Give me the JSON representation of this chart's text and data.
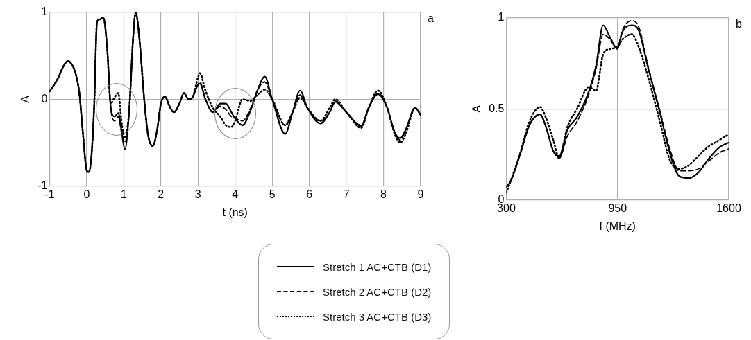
{
  "chart_data": [
    {
      "type": "line",
      "xlabel": "t (ns)",
      "ylabel": "A",
      "annotations": [
        "a"
      ],
      "xlim": [
        -1,
        9
      ],
      "xticks": [
        -1,
        0,
        1,
        2,
        3,
        4,
        5,
        6,
        7,
        8,
        9
      ],
      "ylim": [
        -1,
        1
      ],
      "yticks": [
        -1,
        0,
        1
      ],
      "grid": true,
      "legend": "bottom",
      "marker": "none",
      "x": [
        -1,
        -0.8,
        -0.6,
        -0.5,
        -0.4,
        -0.3,
        -0.2,
        -0.1,
        0,
        0.05,
        0.12,
        0.2,
        0.28,
        0.35,
        0.45,
        0.55,
        0.65,
        0.75,
        0.85,
        0.95,
        1.03,
        1.15,
        1.25,
        1.32,
        1.42,
        1.55,
        1.65,
        1.78,
        1.9,
        2.0,
        2.12,
        2.2,
        2.35,
        2.5,
        2.62,
        2.75,
        2.85,
        3.0,
        3.05,
        3.2,
        3.4,
        3.6,
        3.75,
        3.9,
        4.0,
        4.2,
        4.4,
        4.6,
        4.8,
        5.0,
        5.35,
        5.55,
        5.75,
        5.95,
        6.3,
        6.55,
        6.7,
        7.0,
        7.4,
        7.6,
        7.85,
        8.1,
        8.3,
        8.45,
        8.6,
        8.85,
        9.0
      ],
      "series": [
        {
          "name": "Stretch 1 AC+CTB (D1)",
          "color": "#000000",
          "line_style": "solid",
          "values": [
            0.09,
            0.22,
            0.4,
            0.44,
            0.4,
            0.3,
            0.08,
            -0.4,
            -0.82,
            -0.84,
            -0.7,
            -0.1,
            0.9,
            0.92,
            0.94,
            0.6,
            -0.1,
            -0.2,
            -0.16,
            -0.4,
            -0.58,
            -0.1,
            0.7,
            1.0,
            0.7,
            0.0,
            -0.4,
            -0.54,
            -0.35,
            -0.05,
            0.03,
            -0.05,
            -0.15,
            -0.05,
            0.07,
            0.0,
            0.02,
            0.17,
            0.18,
            0.0,
            -0.15,
            -0.05,
            -0.05,
            -0.15,
            -0.22,
            -0.3,
            -0.15,
            0.1,
            0.26,
            0.0,
            -0.4,
            -0.15,
            0.1,
            -0.1,
            -0.28,
            -0.15,
            -0.03,
            -0.15,
            -0.31,
            -0.1,
            0.06,
            -0.1,
            -0.38,
            -0.45,
            -0.35,
            -0.1,
            -0.18
          ]
        },
        {
          "name": "Stretch 2 AC+CTB (D2)",
          "color": "#000000",
          "line_style": "dashed",
          "values": [
            0.09,
            0.22,
            0.4,
            0.44,
            0.4,
            0.3,
            0.08,
            -0.4,
            -0.82,
            -0.84,
            -0.7,
            -0.1,
            0.9,
            0.92,
            0.94,
            0.6,
            -0.1,
            -0.25,
            -0.2,
            -0.4,
            -0.5,
            -0.1,
            0.7,
            1.0,
            0.7,
            0.0,
            -0.4,
            -0.54,
            -0.35,
            -0.05,
            0.03,
            -0.05,
            -0.15,
            -0.05,
            0.07,
            0.0,
            0.02,
            0.17,
            0.2,
            0.0,
            -0.15,
            -0.08,
            -0.12,
            -0.2,
            -0.22,
            -0.25,
            -0.12,
            0.1,
            0.2,
            0.0,
            -0.3,
            -0.15,
            0.05,
            -0.1,
            -0.25,
            -0.15,
            -0.02,
            -0.15,
            -0.3,
            -0.1,
            0.07,
            -0.1,
            -0.38,
            -0.47,
            -0.35,
            -0.1,
            -0.18
          ]
        },
        {
          "name": "Stretch 3 AC+CTB (D3)",
          "color": "#000000",
          "line_style": "dotted",
          "values": [
            0.09,
            0.22,
            0.4,
            0.44,
            0.4,
            0.3,
            0.08,
            -0.4,
            -0.82,
            -0.84,
            -0.7,
            -0.1,
            0.9,
            0.92,
            0.94,
            0.6,
            -0.05,
            0.02,
            0.07,
            -0.3,
            -0.45,
            -0.1,
            0.7,
            1.0,
            0.7,
            0.0,
            -0.4,
            -0.54,
            -0.35,
            -0.05,
            0.03,
            -0.05,
            -0.15,
            -0.05,
            0.07,
            0.0,
            0.02,
            0.25,
            0.3,
            0.1,
            -0.1,
            -0.2,
            -0.3,
            -0.32,
            -0.25,
            0.0,
            -0.02,
            0.05,
            0.11,
            0.0,
            -0.3,
            -0.15,
            0.02,
            -0.1,
            -0.25,
            -0.1,
            0.0,
            -0.15,
            -0.33,
            -0.1,
            0.1,
            -0.1,
            -0.4,
            -0.5,
            -0.4,
            -0.1,
            -0.18
          ]
        }
      ]
    },
    {
      "type": "line",
      "xlabel": "f (MHz)",
      "ylabel": "A",
      "annotations": [
        "b"
      ],
      "xlim": [
        300,
        1600
      ],
      "xticks": [
        300,
        950,
        1600
      ],
      "ylim": [
        0,
        1
      ],
      "yticks": [
        0,
        0.5,
        1
      ],
      "grid": true,
      "marker": "none",
      "x": [
        300,
        324,
        379,
        435,
        497,
        532,
        574,
        609,
        657,
        713,
        782,
        824,
        866,
        908,
        949,
        977,
        1033,
        1074,
        1130,
        1200,
        1255,
        1311,
        1366,
        1422,
        1478,
        1547,
        1600
      ],
      "series": [
        {
          "color": "#000000",
          "line_style": "solid",
          "values": [
            0.07,
            0.1,
            0.245,
            0.41,
            0.47,
            0.4,
            0.27,
            0.24,
            0.385,
            0.455,
            0.595,
            0.735,
            0.96,
            0.89,
            0.83,
            0.92,
            0.96,
            0.93,
            0.72,
            0.47,
            0.26,
            0.13,
            0.12,
            0.15,
            0.22,
            0.29,
            0.315
          ]
        },
        {
          "color": "#000000",
          "line_style": "dashed",
          "values": [
            0.07,
            0.1,
            0.245,
            0.41,
            0.47,
            0.4,
            0.27,
            0.23,
            0.35,
            0.43,
            0.58,
            0.72,
            0.91,
            0.88,
            0.83,
            0.93,
            0.985,
            0.95,
            0.73,
            0.48,
            0.28,
            0.16,
            0.16,
            0.17,
            0.21,
            0.26,
            0.28
          ]
        },
        {
          "color": "#000000",
          "line_style": "dotted",
          "values": [
            0.04,
            0.1,
            0.25,
            0.43,
            0.51,
            0.45,
            0.33,
            0.23,
            0.4,
            0.5,
            0.62,
            0.6,
            0.8,
            0.83,
            0.84,
            0.88,
            0.91,
            0.84,
            0.67,
            0.42,
            0.22,
            0.17,
            0.19,
            0.24,
            0.29,
            0.33,
            0.36
          ]
        }
      ]
    }
  ]
}
